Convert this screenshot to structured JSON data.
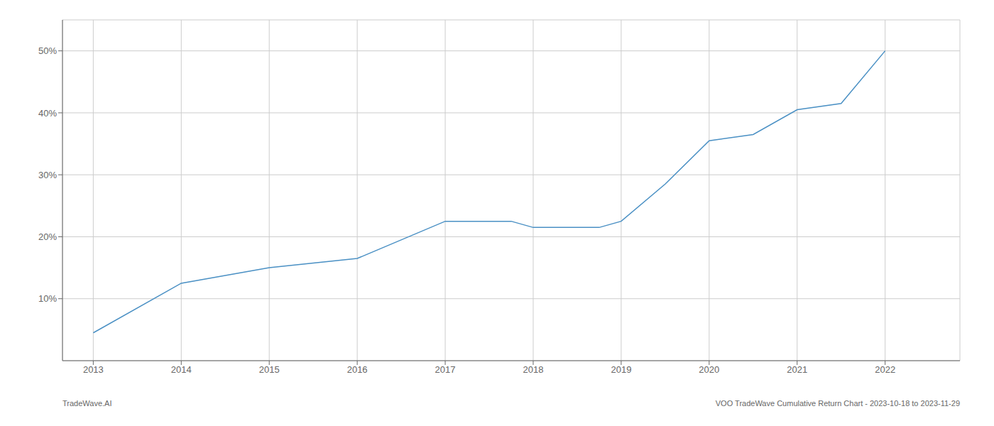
{
  "chart_data": {
    "type": "line",
    "x": [
      2013.0,
      2014.0,
      2015.0,
      2016.0,
      2017.0,
      2017.75,
      2018.0,
      2018.75,
      2019.0,
      2019.5,
      2020.0,
      2020.5,
      2021.0,
      2021.5,
      2022.0
    ],
    "values": [
      4.5,
      12.5,
      15.0,
      16.5,
      22.5,
      22.5,
      21.5,
      21.5,
      22.5,
      28.5,
      35.5,
      36.5,
      40.5,
      41.5,
      50.0
    ],
    "color": "#4a90c4",
    "xlim": [
      2012.65,
      2022.85
    ],
    "xticks": [
      2013,
      2014,
      2015,
      2016,
      2017,
      2018,
      2019,
      2020,
      2021,
      2022
    ],
    "ylim": [
      0,
      55
    ],
    "yticks": [
      {
        "value": 10,
        "label": "10%"
      },
      {
        "value": 20,
        "label": "20%"
      },
      {
        "value": 30,
        "label": "30%"
      },
      {
        "value": 40,
        "label": "40%"
      },
      {
        "value": 50,
        "label": "50%"
      }
    ],
    "grid": true,
    "annotations": [
      "TradeWave.AI",
      "VOO TradeWave Cumulative Return Chart - 2023-10-18 to 2023-11-29"
    ]
  }
}
